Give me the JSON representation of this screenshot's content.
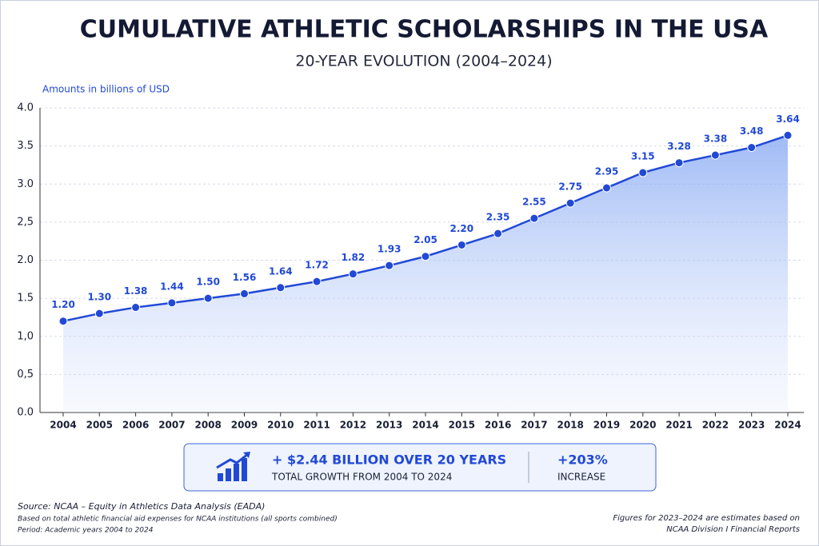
{
  "chart_data": {
    "type": "line",
    "title": "CUMULATIVE ATHLETIC SCHOLARSHIPS IN THE USA",
    "subtitle": "20-YEAR EVOLUTION (2004–2024)",
    "y_label": "Amounts in billions of USD",
    "categories": [
      "2004",
      "2005",
      "2006",
      "2007",
      "2008",
      "2009",
      "2010",
      "2011",
      "2012",
      "2013",
      "2014",
      "2015",
      "2016",
      "2017",
      "2018",
      "2019",
      "2020",
      "2021",
      "2022",
      "2023",
      "2024"
    ],
    "values": [
      1.2,
      1.3,
      1.38,
      1.44,
      1.5,
      1.56,
      1.64,
      1.72,
      1.82,
      1.93,
      2.05,
      2.2,
      2.35,
      2.55,
      2.75,
      2.95,
      3.15,
      3.28,
      3.38,
      3.48,
      3.64
    ],
    "value_labels": [
      "1.20",
      "1.30",
      "1.38",
      "1.44",
      "1.50",
      "1.56",
      "1.64",
      "1.72",
      "1.82",
      "1.93",
      "2.05",
      "2.20",
      "2.35",
      "2.55",
      "2.75",
      "2.95",
      "3.15",
      "3.28",
      "3.38",
      "3.48",
      "3.64"
    ],
    "color": "#2149d6",
    "ylim": [
      0,
      4
    ],
    "yticks": [
      {
        "value": 0,
        "label": "0.0"
      },
      {
        "value": 0.5,
        "label": "0,5"
      },
      {
        "value": 1,
        "label": "1,0"
      },
      1.5,
      {
        "value": 2,
        "label": "2.0"
      },
      {
        "value": 2.5,
        "label": "2,5"
      },
      {
        "value": 3,
        "label": "3.0"
      },
      3.5,
      {
        "value": 4,
        "label": "4.0"
      }
    ],
    "grid": true
  },
  "callout": {
    "headline": "+ $2.44 BILLION OVER 20 YEARS",
    "subline": "TOTAL GROWTH FROM 2004 TO 2024",
    "percent": "+203%",
    "percent_label": "INCREASE"
  },
  "notes": {
    "source": "Source: NCAA – Equity in Athletics Data Analysis (EADA)",
    "basis": "Based on total athletic financial aid expenses for NCAA institutions (all sports combined)",
    "period": "Period: Academic years 2004 to 2024",
    "estimate_1": "Figures for 2023–2024 are estimates based on",
    "estimate_2": "NCAA Division I Financial Reports"
  }
}
